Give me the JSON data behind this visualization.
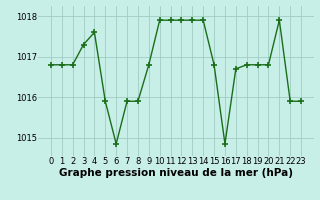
{
  "x": [
    0,
    1,
    2,
    3,
    4,
    5,
    6,
    7,
    8,
    9,
    10,
    11,
    12,
    13,
    14,
    15,
    16,
    17,
    18,
    19,
    20,
    21,
    22,
    23
  ],
  "y": [
    1016.8,
    1016.8,
    1016.8,
    1017.3,
    1017.6,
    1015.9,
    1014.85,
    1015.9,
    1015.9,
    1016.8,
    1017.9,
    1017.9,
    1017.9,
    1017.9,
    1017.9,
    1016.8,
    1014.85,
    1016.7,
    1016.8,
    1016.8,
    1016.8,
    1017.9,
    1015.9,
    1015.9
  ],
  "line_color": "#1a6e1a",
  "bg_color": "#c8eee8",
  "grid_color": "#a0ccc4",
  "xlabel": "Graphe pression niveau de la mer (hPa)",
  "ylim": [
    1014.55,
    1018.25
  ],
  "yticks": [
    1015,
    1016,
    1017,
    1018
  ],
  "xticks": [
    0,
    1,
    2,
    3,
    4,
    5,
    6,
    7,
    8,
    9,
    10,
    11,
    12,
    13,
    14,
    15,
    16,
    17,
    18,
    19,
    20,
    21,
    22,
    23
  ],
  "marker": "+",
  "markersize": 4,
  "linewidth": 1.0,
  "xlabel_fontsize": 7.5,
  "tick_fontsize": 6,
  "xlabel_fontweight": "bold",
  "markeredgewidth": 1.2
}
